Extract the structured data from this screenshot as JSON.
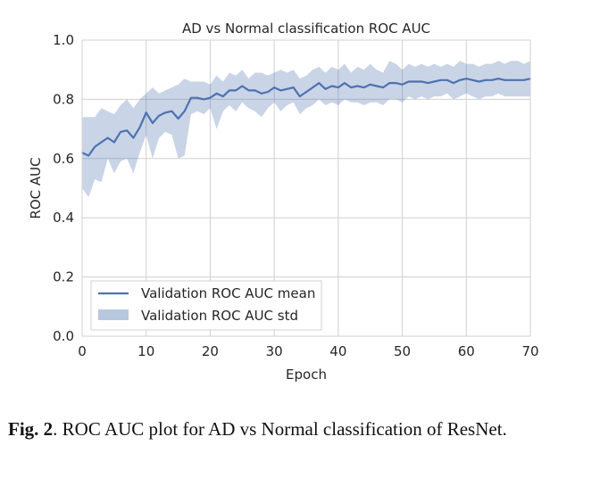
{
  "chart_data": {
    "type": "line",
    "title": "AD vs Normal classification ROC AUC",
    "xlabel": "Epoch",
    "ylabel": "ROC AUC",
    "xlim": [
      0,
      70
    ],
    "ylim": [
      0.0,
      1.0
    ],
    "xticks": [
      "0",
      "10",
      "20",
      "30",
      "40",
      "50",
      "60",
      "70"
    ],
    "yticks": [
      "0.0",
      "0.2",
      "0.4",
      "0.6",
      "0.8",
      "1.0"
    ],
    "grid": true,
    "legend_position": "lower-left",
    "series": [
      {
        "name": "Validation ROC AUC mean",
        "kind": "line",
        "color": "#4c72b0",
        "x": [
          0,
          1,
          2,
          3,
          4,
          5,
          6,
          7,
          8,
          9,
          10,
          11,
          12,
          13,
          14,
          15,
          16,
          17,
          18,
          19,
          20,
          21,
          22,
          23,
          24,
          25,
          26,
          27,
          28,
          29,
          30,
          31,
          32,
          33,
          34,
          35,
          36,
          37,
          38,
          39,
          40,
          41,
          42,
          43,
          44,
          45,
          46,
          47,
          48,
          49,
          50,
          51,
          52,
          53,
          54,
          55,
          56,
          57,
          58,
          59,
          60,
          61,
          62,
          63,
          64,
          65,
          66,
          67,
          68,
          69,
          70
        ],
        "y": [
          0.62,
          0.61,
          0.64,
          0.655,
          0.67,
          0.655,
          0.69,
          0.695,
          0.67,
          0.705,
          0.755,
          0.72,
          0.745,
          0.755,
          0.76,
          0.735,
          0.76,
          0.805,
          0.805,
          0.8,
          0.805,
          0.82,
          0.81,
          0.83,
          0.83,
          0.845,
          0.83,
          0.83,
          0.82,
          0.825,
          0.84,
          0.83,
          0.835,
          0.84,
          0.81,
          0.825,
          0.84,
          0.855,
          0.835,
          0.845,
          0.84,
          0.855,
          0.84,
          0.845,
          0.84,
          0.85,
          0.845,
          0.84,
          0.855,
          0.855,
          0.85,
          0.86,
          0.86,
          0.86,
          0.855,
          0.86,
          0.865,
          0.865,
          0.855,
          0.865,
          0.87,
          0.865,
          0.86,
          0.865,
          0.865,
          0.87,
          0.865,
          0.865,
          0.865,
          0.865,
          0.87
        ]
      },
      {
        "name": "Validation ROC AUC std",
        "kind": "band",
        "color": "#4c72b0",
        "opacity": 0.3,
        "x": [
          0,
          1,
          2,
          3,
          4,
          5,
          6,
          7,
          8,
          9,
          10,
          11,
          12,
          13,
          14,
          15,
          16,
          17,
          18,
          19,
          20,
          21,
          22,
          23,
          24,
          25,
          26,
          27,
          28,
          29,
          30,
          31,
          32,
          33,
          34,
          35,
          36,
          37,
          38,
          39,
          40,
          41,
          42,
          43,
          44,
          45,
          46,
          47,
          48,
          49,
          50,
          51,
          52,
          53,
          54,
          55,
          56,
          57,
          58,
          59,
          60,
          61,
          62,
          63,
          64,
          65,
          66,
          67,
          68,
          69,
          70
        ],
        "lower": [
          0.5,
          0.47,
          0.53,
          0.52,
          0.6,
          0.55,
          0.59,
          0.6,
          0.55,
          0.62,
          0.68,
          0.6,
          0.67,
          0.69,
          0.68,
          0.6,
          0.61,
          0.75,
          0.76,
          0.75,
          0.77,
          0.7,
          0.76,
          0.78,
          0.76,
          0.79,
          0.77,
          0.76,
          0.74,
          0.77,
          0.79,
          0.76,
          0.78,
          0.79,
          0.75,
          0.77,
          0.78,
          0.8,
          0.78,
          0.79,
          0.78,
          0.8,
          0.79,
          0.79,
          0.78,
          0.79,
          0.79,
          0.78,
          0.8,
          0.8,
          0.79,
          0.81,
          0.8,
          0.81,
          0.8,
          0.81,
          0.81,
          0.82,
          0.8,
          0.81,
          0.82,
          0.81,
          0.8,
          0.81,
          0.81,
          0.82,
          0.81,
          0.81,
          0.81,
          0.81,
          0.81
        ],
        "upper": [
          0.74,
          0.74,
          0.74,
          0.77,
          0.76,
          0.75,
          0.78,
          0.8,
          0.77,
          0.8,
          0.82,
          0.84,
          0.82,
          0.83,
          0.84,
          0.85,
          0.87,
          0.86,
          0.86,
          0.86,
          0.85,
          0.88,
          0.86,
          0.89,
          0.88,
          0.9,
          0.87,
          0.89,
          0.89,
          0.88,
          0.89,
          0.9,
          0.89,
          0.9,
          0.87,
          0.88,
          0.9,
          0.91,
          0.89,
          0.91,
          0.9,
          0.92,
          0.89,
          0.91,
          0.9,
          0.92,
          0.9,
          0.89,
          0.93,
          0.92,
          0.9,
          0.92,
          0.91,
          0.92,
          0.91,
          0.92,
          0.91,
          0.92,
          0.91,
          0.93,
          0.92,
          0.92,
          0.91,
          0.92,
          0.92,
          0.93,
          0.92,
          0.93,
          0.93,
          0.92,
          0.93
        ]
      }
    ]
  },
  "caption": {
    "label": "Fig. 2",
    "text": ".  ROC AUC plot for AD vs Normal classification of ResNet."
  }
}
